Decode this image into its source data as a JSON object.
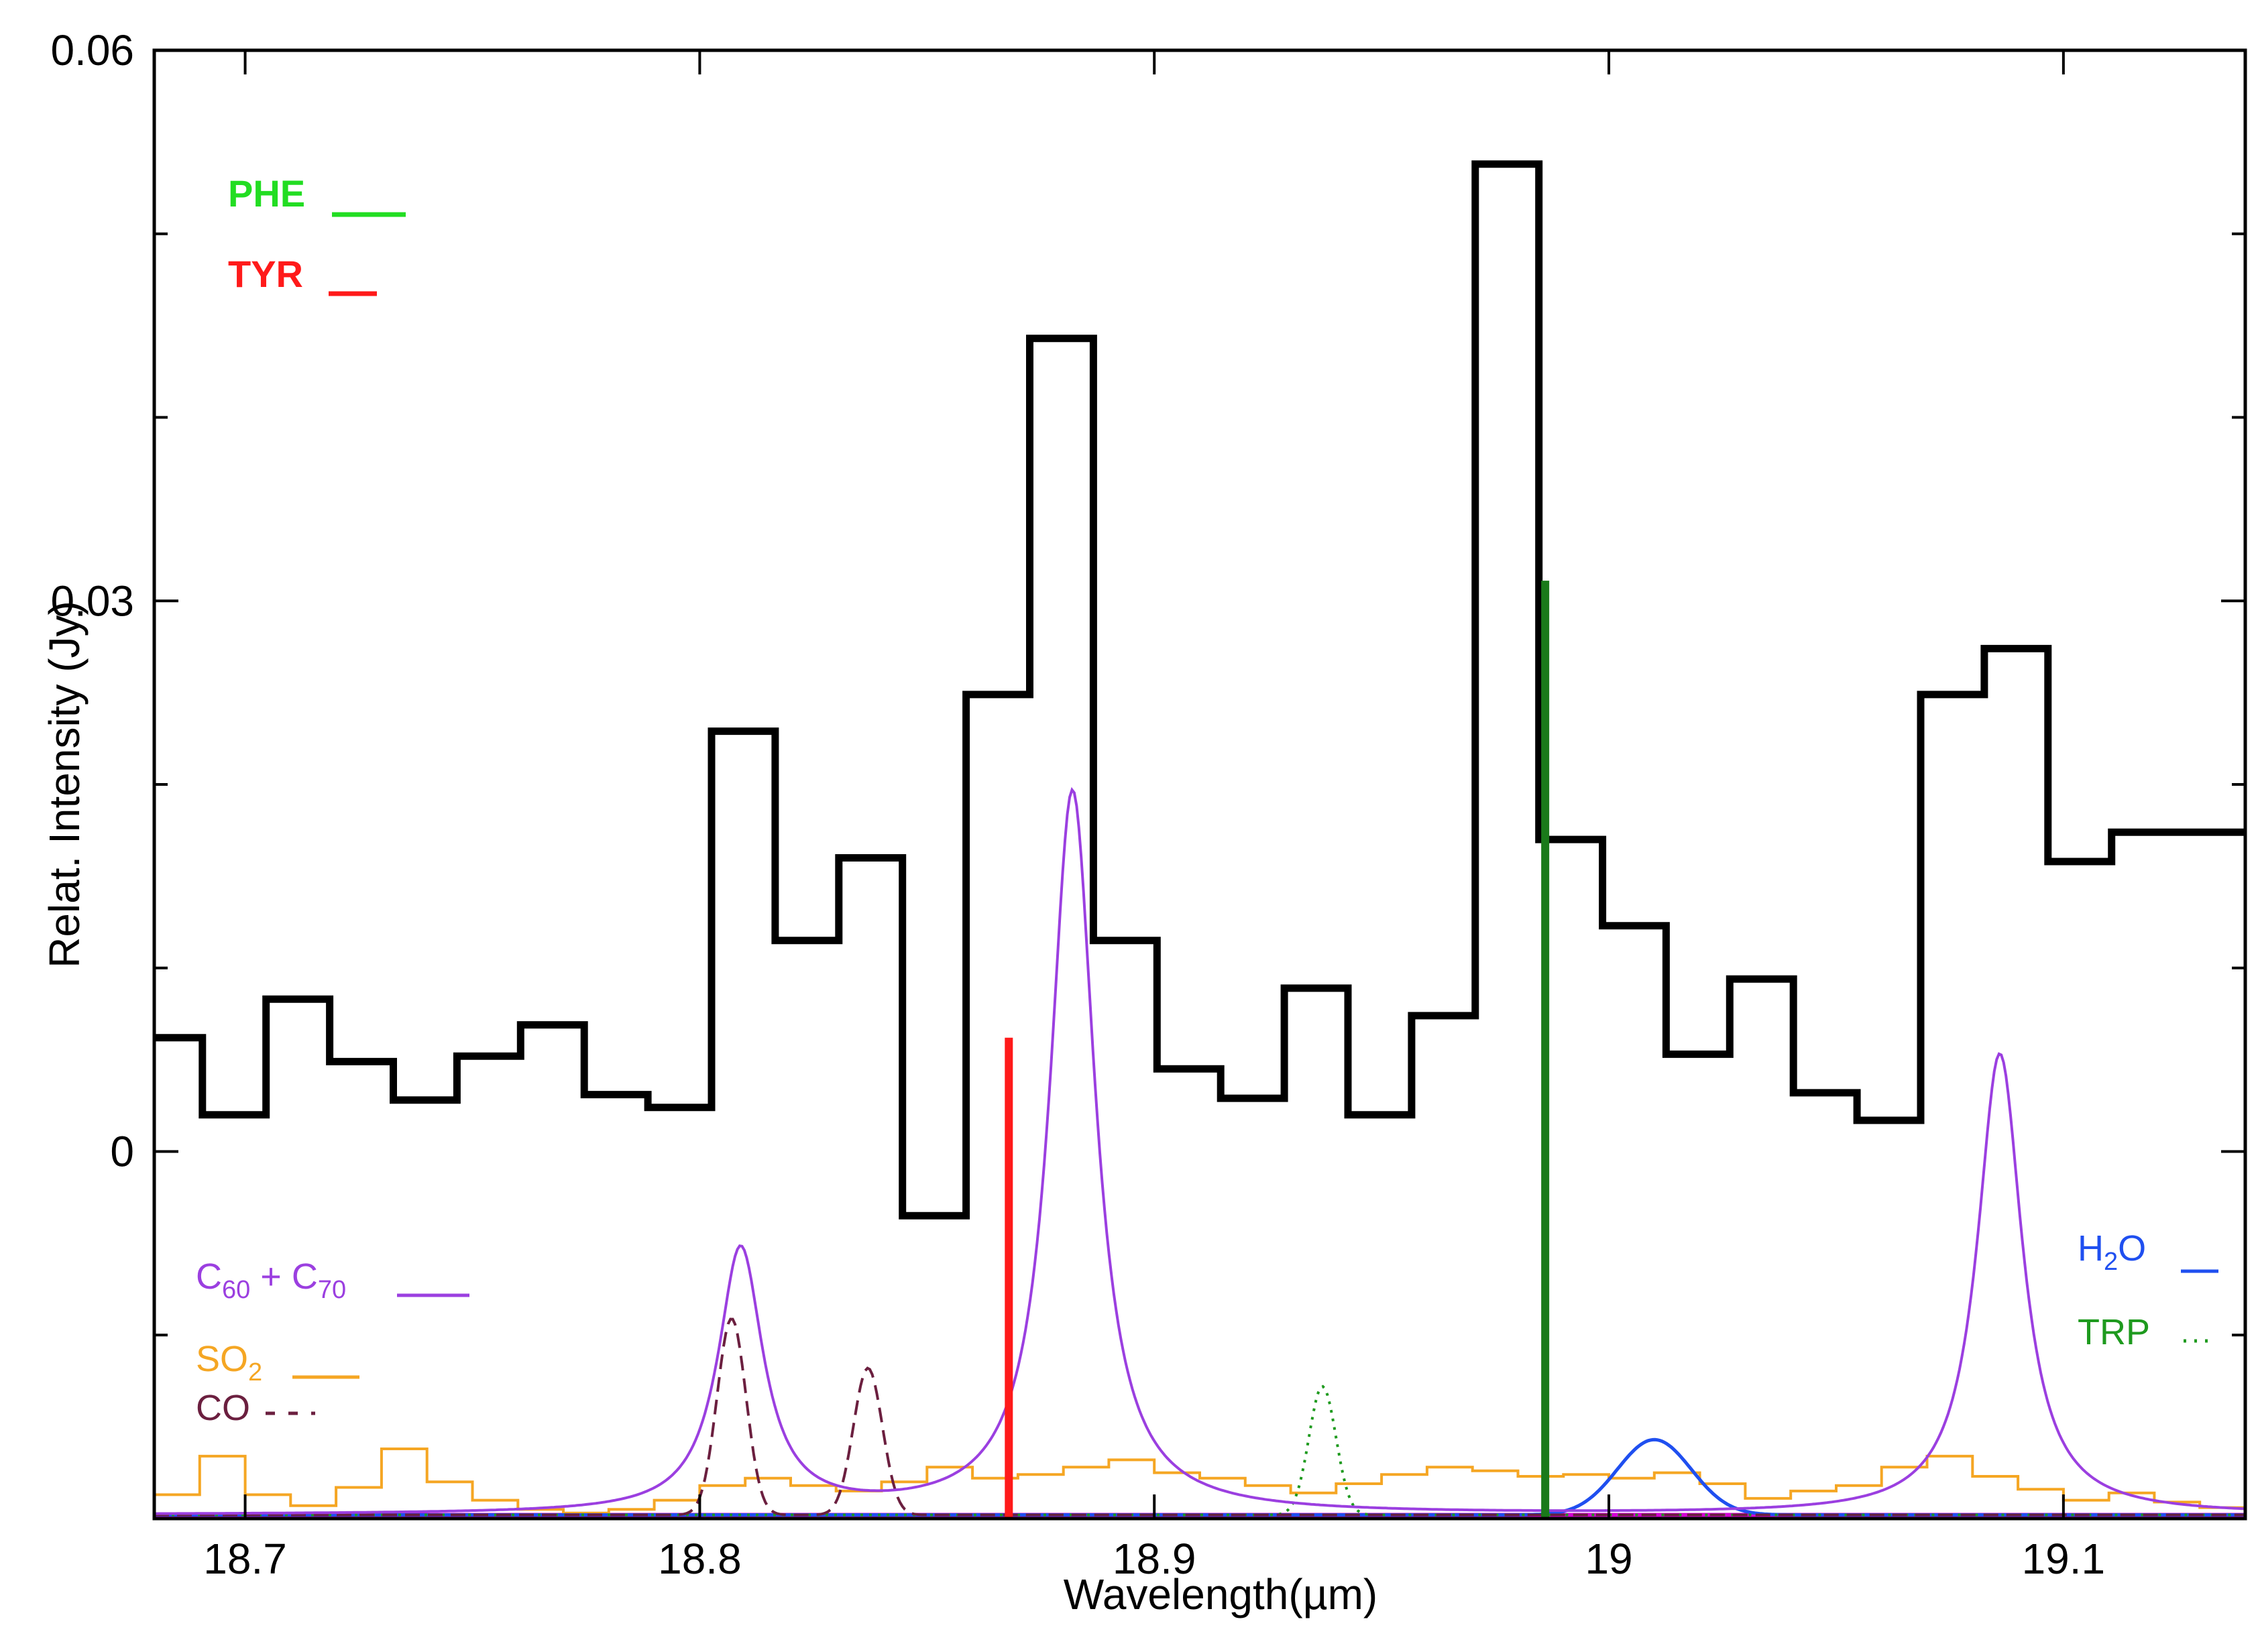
{
  "chart_data": {
    "type": "line",
    "xlabel": "Wavelength(µm)",
    "ylabel": "Relat. Intensity (Jy)",
    "xlim": [
      18.68,
      19.14
    ],
    "ylim": [
      -0.02,
      0.06
    ],
    "x_ticks": [
      18.7,
      18.8,
      18.9,
      19.0,
      19.1
    ],
    "x_tick_labels": [
      "18.7",
      "18.8",
      "18.9",
      "19",
      "19.1"
    ],
    "y_ticks": [
      0.0,
      0.03,
      0.06
    ],
    "y_tick_labels": [
      "0",
      "0.03",
      "0.06"
    ],
    "y_minor_ticks": [
      -0.01,
      0.01,
      0.02,
      0.04,
      0.05
    ],
    "colors": {
      "observed": "#000000",
      "c60c70": "#9b3fe0",
      "so2": "#f5a623",
      "co": "#6b1f3f",
      "h2o": "#1f4ff0",
      "trp": "#1e9a1e",
      "phe": "#22dd22",
      "tyr": "#ff1a1a",
      "trp_line": "#1a7a1a",
      "baseline": "#d400d4"
    },
    "legend_left": {
      "phe": "PHE",
      "tyr": "TYR"
    },
    "legend_models": {
      "c60_a": "C",
      "c60_sub": "60",
      "c60_plus": " + C",
      "c70_sub": "70",
      "so2_a": "SO",
      "so2_sub": "2",
      "co": "CO",
      "h2o_a": "H",
      "h2o_sub": "2",
      "h2o_b": "O",
      "trp": "TRP"
    },
    "series": [
      {
        "name": "Observed spectrum",
        "style": "steps",
        "x": [
          18.68,
          18.6906,
          18.7046,
          18.7186,
          18.7326,
          18.7466,
          18.7606,
          18.7746,
          18.7886,
          18.8026,
          18.8166,
          18.8306,
          18.8446,
          18.8586,
          18.8726,
          18.8866,
          18.9006,
          18.9146,
          18.9286,
          18.9426,
          18.9566,
          18.9706,
          18.9846,
          18.9986,
          19.0126,
          19.0266,
          19.0406,
          19.0546,
          19.0686,
          19.0826,
          19.0966,
          19.1106,
          19.1246
        ],
        "values": [
          0.0062,
          0.002,
          0.0083,
          0.0049,
          0.0028,
          0.0052,
          0.0069,
          0.0031,
          0.0024,
          0.0229,
          0.0115,
          0.016,
          -0.0035,
          0.0249,
          0.0443,
          0.0115,
          0.0045,
          0.0029,
          0.0089,
          0.002,
          0.0074,
          0.0538,
          0.017,
          0.0123,
          0.0053,
          0.0094,
          0.0032,
          0.0017,
          0.0249,
          0.0274,
          0.0158,
          0.0174,
          0.0174
        ]
      },
      {
        "name": "C60 + C70",
        "style": "lorentzian",
        "baseline": -0.0198,
        "peaks": [
          {
            "center": 18.809,
            "height": -0.0054
          },
          {
            "center": 18.882,
            "height": 0.0196
          },
          {
            "center": 19.086,
            "height": 0.0053
          }
        ]
      },
      {
        "name": "SO2",
        "style": "steps",
        "x": [
          18.68,
          18.69,
          18.7,
          18.71,
          18.72,
          18.73,
          18.74,
          18.75,
          18.76,
          18.77,
          18.78,
          18.79,
          18.8,
          18.81,
          18.82,
          18.83,
          18.84,
          18.85,
          18.86,
          18.87,
          18.88,
          18.89,
          18.9,
          18.91,
          18.92,
          18.93,
          18.94,
          18.95,
          18.96,
          18.97,
          18.98,
          18.99,
          19.0,
          19.01,
          19.02,
          19.03,
          19.04,
          19.05,
          19.06,
          19.07,
          19.08,
          19.09,
          19.1,
          19.11,
          19.12,
          19.13,
          19.14
        ],
        "values": [
          -0.0187,
          -0.0166,
          -0.0187,
          -0.0193,
          -0.0183,
          -0.0162,
          -0.018,
          -0.019,
          -0.0195,
          -0.0197,
          -0.0195,
          -0.019,
          -0.0182,
          -0.0178,
          -0.0182,
          -0.0185,
          -0.018,
          -0.0172,
          -0.0178,
          -0.0176,
          -0.0172,
          -0.0168,
          -0.0175,
          -0.0178,
          -0.0182,
          -0.0186,
          -0.0181,
          -0.0176,
          -0.0172,
          -0.0174,
          -0.0177,
          -0.0176,
          -0.0178,
          -0.0175,
          -0.0181,
          -0.0189,
          -0.0185,
          -0.0182,
          -0.0172,
          -0.0166,
          -0.0177,
          -0.0184,
          -0.019,
          -0.0186,
          -0.0191,
          -0.0194,
          -0.0193
        ]
      },
      {
        "name": "CO",
        "style": "gaussian-dashed",
        "baseline": -0.0198,
        "peaks": [
          {
            "center": 18.807,
            "height": -0.0091
          },
          {
            "center": 18.837,
            "height": -0.0118
          }
        ]
      },
      {
        "name": "H2O",
        "style": "gaussian",
        "baseline": -0.0198,
        "peaks": [
          {
            "center": 19.01,
            "height": -0.0157
          }
        ]
      },
      {
        "name": "TRP",
        "style": "gaussian-dotted",
        "baseline": -0.0198,
        "peaks": [
          {
            "center": 18.937,
            "height": -0.0128
          }
        ]
      }
    ],
    "vertical_lines": [
      {
        "name": "TYR",
        "x": 18.868,
        "y_top": 0.0062
      },
      {
        "name": "TRP",
        "x": 18.986,
        "y_top": 0.0311
      }
    ]
  }
}
